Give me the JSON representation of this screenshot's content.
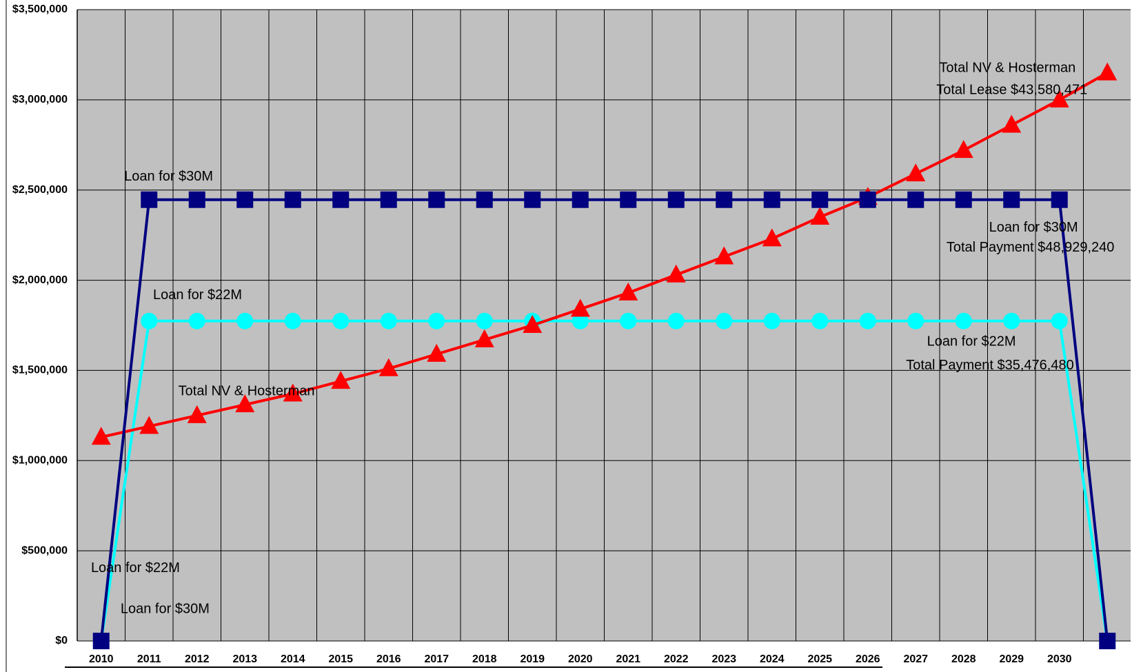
{
  "chart_data": {
    "type": "line",
    "categories": [
      "2010",
      "2011",
      "2012",
      "2013",
      "2014",
      "2015",
      "2016",
      "2017",
      "2018",
      "2019",
      "2020",
      "2021",
      "2022",
      "2023",
      "2024",
      "2025",
      "2026",
      "2027",
      "2028",
      "2029",
      "2030",
      null
    ],
    "series": [
      {
        "name": "Loan for $22M",
        "color": "#00ffff",
        "marker": "circle",
        "values": [
          0,
          1773824,
          1773824,
          1773824,
          1773824,
          1773824,
          1773824,
          1773824,
          1773824,
          1773824,
          1773824,
          1773824,
          1773824,
          1773824,
          1773824,
          1773824,
          1773824,
          1773824,
          1773824,
          1773824,
          1773824,
          0
        ]
      },
      {
        "name": "Total NV & Hosterman",
        "color": "#ff0000",
        "marker": "triangle",
        "values": [
          1130000,
          1190000,
          1250000,
          1310000,
          1370000,
          1440000,
          1510000,
          1590000,
          1670000,
          1750000,
          1840000,
          1930000,
          2030000,
          2130000,
          2230000,
          2350000,
          2460000,
          2590000,
          2720000,
          2860000,
          3000000,
          3150000
        ]
      },
      {
        "name": "Loan for $30M",
        "color": "#000080",
        "marker": "square",
        "values": [
          0,
          2446462,
          2446462,
          2446462,
          2446462,
          2446462,
          2446462,
          2446462,
          2446462,
          2446462,
          2446462,
          2446462,
          2446462,
          2446462,
          2446462,
          2446462,
          2446462,
          2446462,
          2446462,
          2446462,
          2446462,
          0
        ]
      }
    ],
    "annotations": [
      "Loan for $30M",
      "Loan for $22M",
      "Total NV & Hosterman",
      "Loan for $22M",
      "Loan for $30M",
      "Total NV & Hosterman",
      "Total Lease $43,580,471",
      "Loan for $30M",
      "Total Payment $48,929,240",
      "Loan for $22M",
      "Total Payment $35,476,480"
    ],
    "ylim": [
      0,
      3500000
    ],
    "yticks": [
      {
        "value": 0,
        "label": "$0"
      },
      {
        "value": 500000,
        "label": "$500,000"
      },
      {
        "value": 1000000,
        "label": "$1,000,000"
      },
      {
        "value": 1500000,
        "label": "$1,500,000"
      },
      {
        "value": 2000000,
        "label": "$2,000,000"
      },
      {
        "value": 2500000,
        "label": "$2,500,000"
      },
      {
        "value": 3000000,
        "label": "$3,000,000"
      },
      {
        "value": 3500000,
        "label": "$3,500,000"
      }
    ],
    "grid": true,
    "background": "#c0c0c0"
  }
}
